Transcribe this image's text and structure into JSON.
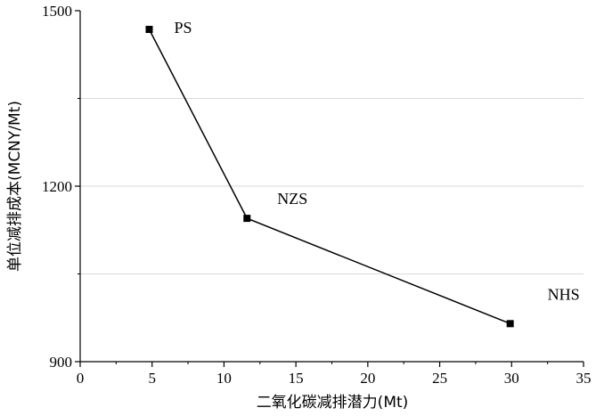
{
  "chart_data": {
    "type": "line",
    "xlabel": "二氧化碳减排潜力(Mt)",
    "ylabel": "单位减排成本(MCNY/Mt)",
    "xlim": [
      0,
      35
    ],
    "ylim": [
      900,
      1500
    ],
    "x_ticks": [
      0,
      5,
      10,
      15,
      20,
      25,
      30,
      35
    ],
    "y_ticks": [
      900,
      1200,
      1500
    ],
    "y_gridlines": [
      1050,
      1200,
      1350
    ],
    "grid": "horizontal",
    "series": [
      {
        "marker": "square",
        "color": "#000000",
        "points": [
          {
            "label": "PS",
            "x": 4.8,
            "y": 1468
          },
          {
            "label": "NZS",
            "x": 11.6,
            "y": 1145
          },
          {
            "label": "NHS",
            "x": 29.9,
            "y": 965
          }
        ]
      }
    ]
  }
}
